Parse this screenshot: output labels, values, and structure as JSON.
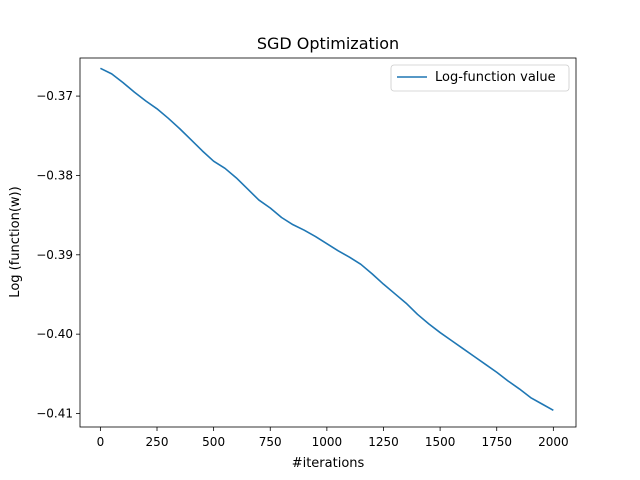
{
  "chart_data": {
    "type": "line",
    "title": "SGD Optimization",
    "xlabel": "#iterations",
    "ylabel": "Log (function(w))",
    "xlim": [
      -90,
      2100
    ],
    "ylim": [
      -0.4117,
      -0.3652
    ],
    "xticks": [
      0,
      250,
      500,
      750,
      1000,
      1250,
      1500,
      1750,
      2000
    ],
    "xtick_labels": [
      "0",
      "250",
      "500",
      "750",
      "1000",
      "1250",
      "1500",
      "1750",
      "2000"
    ],
    "yticks": [
      -0.37,
      -0.38,
      -0.39,
      -0.4,
      -0.41
    ],
    "ytick_labels": [
      "−0.37",
      "−0.38",
      "−0.39",
      "−0.40",
      "−0.41"
    ],
    "grid": false,
    "legend_position": "top-right",
    "series": [
      {
        "name": "Log-function value",
        "color": "#1f77b4",
        "x": [
          0,
          50,
          100,
          150,
          200,
          250,
          300,
          350,
          400,
          450,
          500,
          550,
          600,
          650,
          700,
          750,
          800,
          850,
          900,
          950,
          1000,
          1050,
          1100,
          1150,
          1200,
          1250,
          1300,
          1350,
          1400,
          1450,
          1500,
          1550,
          1600,
          1650,
          1700,
          1750,
          1800,
          1850,
          1900,
          1950,
          2000
        ],
        "y": [
          -0.3665,
          -0.3672,
          -0.3683,
          -0.3695,
          -0.3706,
          -0.3716,
          -0.3728,
          -0.3741,
          -0.3755,
          -0.3769,
          -0.3782,
          -0.3791,
          -0.3803,
          -0.3817,
          -0.3831,
          -0.3841,
          -0.3853,
          -0.3862,
          -0.3869,
          -0.3877,
          -0.3886,
          -0.3895,
          -0.3903,
          -0.3912,
          -0.3924,
          -0.3937,
          -0.3949,
          -0.3961,
          -0.3975,
          -0.3987,
          -0.3998,
          -0.4008,
          -0.4018,
          -0.4028,
          -0.4038,
          -0.4048,
          -0.4059,
          -0.4069,
          -0.408,
          -0.4088,
          -0.4096
        ]
      }
    ]
  }
}
